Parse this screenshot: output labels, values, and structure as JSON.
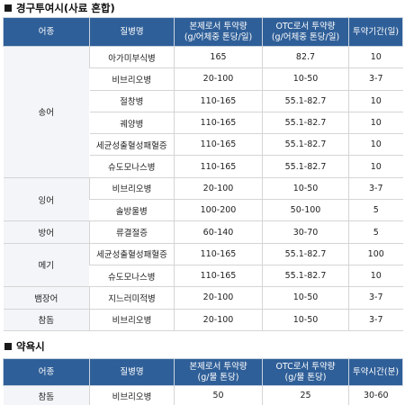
{
  "oral_section": {
    "title": "경구투여시(사료 혼합)",
    "headers": [
      "어종",
      "질병명",
      "본제로서 투약량\n(g/어체중 톤당/일)",
      "OTC로서 투약량\n(g/어체중 톤당/일)",
      "투약기간(일)"
    ],
    "groups": [
      {
        "species": "송어",
        "rows": [
          [
            "아가미부식병",
            "165",
            "82.7",
            "10"
          ],
          [
            "비브리오병",
            "20-100",
            "10-50",
            "3-7"
          ],
          [
            "절창병",
            "110-165",
            "55.1-82.7",
            "10"
          ],
          [
            "궤양병",
            "110-165",
            "55.1-82.7",
            "10"
          ],
          [
            "세균성출혈성패혈증",
            "110-165",
            "55.1-82.7",
            "10"
          ],
          [
            "슈도모나스병",
            "110-165",
            "55.1-82.7",
            "10"
          ]
        ]
      },
      {
        "species": "잉어",
        "rows": [
          [
            "비브리오병",
            "20-100",
            "10-50",
            "3-7"
          ],
          [
            "솔방울병",
            "100-200",
            "50-100",
            "5"
          ]
        ]
      },
      {
        "species": "방어",
        "rows": [
          [
            "류결절증",
            "60-140",
            "30-70",
            "5"
          ]
        ]
      },
      {
        "species": "메기",
        "rows": [
          [
            "세균성출혈성패혈증",
            "110-165",
            "55.1-82.7",
            "100"
          ],
          [
            "슈도모나스병",
            "110-165",
            "55.1-82.7",
            "10"
          ]
        ]
      },
      {
        "species": "뱀장어",
        "rows": [
          [
            "지느러미적병",
            "20-100",
            "10-50",
            "3-7"
          ]
        ]
      },
      {
        "species": "참돔",
        "rows": [
          [
            "비브리오병",
            "20-100",
            "10-50",
            "3-7"
          ]
        ]
      }
    ]
  },
  "bath_section": {
    "title": "약욕시",
    "headers": [
      "어종",
      "질병명",
      "본제로서 투약량\n(g/물 톤당)",
      "OTC로서 투약량\n(g/물 톤당)",
      "투약시간(분)"
    ],
    "groups": [
      {
        "species": "참돔",
        "rows": [
          [
            "비브리오병",
            "50",
            "25",
            "30-60"
          ]
        ]
      }
    ]
  },
  "colors": {
    "header_bg": "#2f5f98",
    "header_text": "#ffffff",
    "grid": "#d5d5d5"
  }
}
